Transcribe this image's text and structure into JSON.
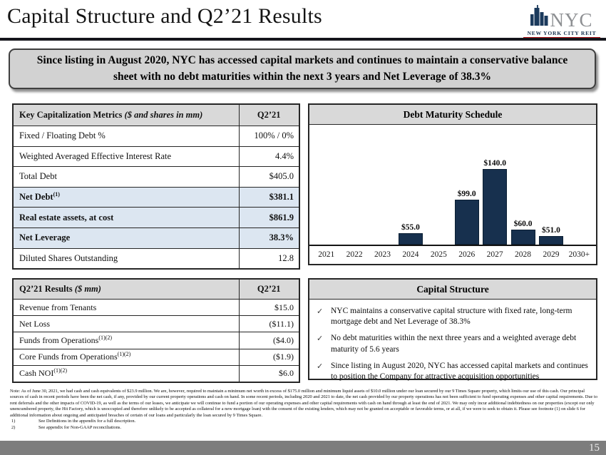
{
  "header": {
    "title": "Capital Structure and Q2’21 Results"
  },
  "logo": {
    "acronym": "NYC",
    "subtitle": "NEW YORK CITY REIT"
  },
  "banner": {
    "text": "Since listing in August 2020, NYC has accessed capital markets and continues to maintain a conservative balance sheet with no debt maturities within the next 3 years and Net Leverage of 38.3%"
  },
  "tables": {
    "cap_metrics": {
      "title": "Key Capitalization Metrics ",
      "title_note": "($ and shares in mm)",
      "value_col": "Q2’21",
      "rows": [
        {
          "label": "Fixed / Floating Debt %",
          "sup": "",
          "value": "100% / 0%",
          "highlight": false
        },
        {
          "label": "Weighted Averaged Effective Interest Rate",
          "sup": "",
          "value": "4.4%",
          "highlight": false
        },
        {
          "label": "Total Debt",
          "sup": "",
          "value": "$405.0",
          "highlight": false
        },
        {
          "label": "Net Debt",
          "sup": "(1)",
          "value": "$381.1",
          "highlight": true
        },
        {
          "label": "Real estate assets, at cost",
          "sup": "",
          "value": "$861.9",
          "highlight": true
        },
        {
          "label": "Net Leverage",
          "sup": "",
          "value": "38.3%",
          "highlight": true
        },
        {
          "label": "Diluted Shares Outstanding",
          "sup": "",
          "value": "12.8",
          "highlight": false
        }
      ]
    },
    "results": {
      "title": "Q2’21 Results ",
      "title_note": "($ mm)",
      "value_col": "Q2’21",
      "rows": [
        {
          "label": "Revenue from Tenants",
          "sup": "",
          "value": "$15.0",
          "highlight": false
        },
        {
          "label": "Net Loss",
          "sup": "",
          "value": "($11.1)",
          "highlight": false
        },
        {
          "label": "Funds from Operations",
          "sup": "(1)(2)",
          "value": "($4.0)",
          "highlight": false
        },
        {
          "label": "Core Funds from Operations",
          "sup": "(1)(2)",
          "value": "($1.9)",
          "highlight": false
        },
        {
          "label": "Cash NOI",
          "sup": "(1)(2)",
          "value": "$6.0",
          "highlight": false
        }
      ]
    }
  },
  "chart_data": {
    "type": "bar",
    "title": "Debt Maturity Schedule",
    "categories": [
      "2021",
      "2022",
      "2023",
      "2024",
      "2025",
      "2026",
      "2027",
      "2028",
      "2029",
      "2030+"
    ],
    "values": [
      0,
      0,
      0,
      55.0,
      0,
      99.0,
      140.0,
      60.0,
      51.0,
      0
    ],
    "bar_labels": [
      "",
      "",
      "",
      "$55.0",
      "",
      "$99.0",
      "$140.0",
      "$60.0",
      "$51.0",
      ""
    ],
    "xlabel": "",
    "ylabel": "",
    "ylim": [
      40,
      150
    ],
    "grid": false,
    "legend": false,
    "units": "$ in millions"
  },
  "capital_structure": {
    "title": "Capital Structure",
    "check_icon": "✓",
    "bullets": [
      "NYC maintains a conservative capital structure with fixed rate, long-term mortgage debt and Net Leverage of 38.3%",
      "No debt maturities within the next three years and a weighted average debt maturity of 5.6 years",
      "Since listing in August 2020, NYC has accessed capital markets and continues to position the Company for attractive acquisition opportunities"
    ]
  },
  "footnote": {
    "note": "Note: As of June 30, 2021, we had cash and cash equivalents of $23.9 million. We are, however, required to maintain a minimum net worth in excess of $175.0 million and minimum liquid assets of $10.0 million under our loan secured by our 9 Times Square property, which limits our use of this cash. Our principal sources of cash in recent periods have been the net cash, if any, provided by our current property operations and cash on hand. In some recent periods, including 2020 and 2021 to date, the net cash provided by our property operations has not been sufficient to fund operating expenses and other capital requirements. Due to rent deferrals and the other impacts of COVID-19, as well as the terms of our leases, we anticipate we will continue to fund a portion of our operating expenses and other capital requirements with cash on hand through at least the end of 2021. We may only incur additional indebtedness on our properties (except our only unencumbered property, the Hit Factory, which is unoccupied and therefore unlikely to be accepted as collateral for a new mortgage loan) with the consent of the existing lenders, which may not be granted on acceptable or favorable terms, or at all, if we were to seek to obtain it. Please see footnote (1) on slide 6 for additional information about ongoing and anticipated breaches of certain of our loans and particularly the loan secured by 9 Times Square.",
    "items": [
      {
        "num": "1)",
        "text": "See Definitions in the appendix for a full description."
      },
      {
        "num": "2)",
        "text": "See appendix for Non-GAAP reconciliations."
      }
    ]
  },
  "footer": {
    "page_number": "15"
  },
  "colors": {
    "navy": "#17304e",
    "header_gray": "#d9d9d9",
    "highlight_blue": "#dce6f1",
    "banner_gray": "#d2d2d2",
    "footer_gray": "#7d7d7d",
    "accent_red": "#b01116"
  }
}
